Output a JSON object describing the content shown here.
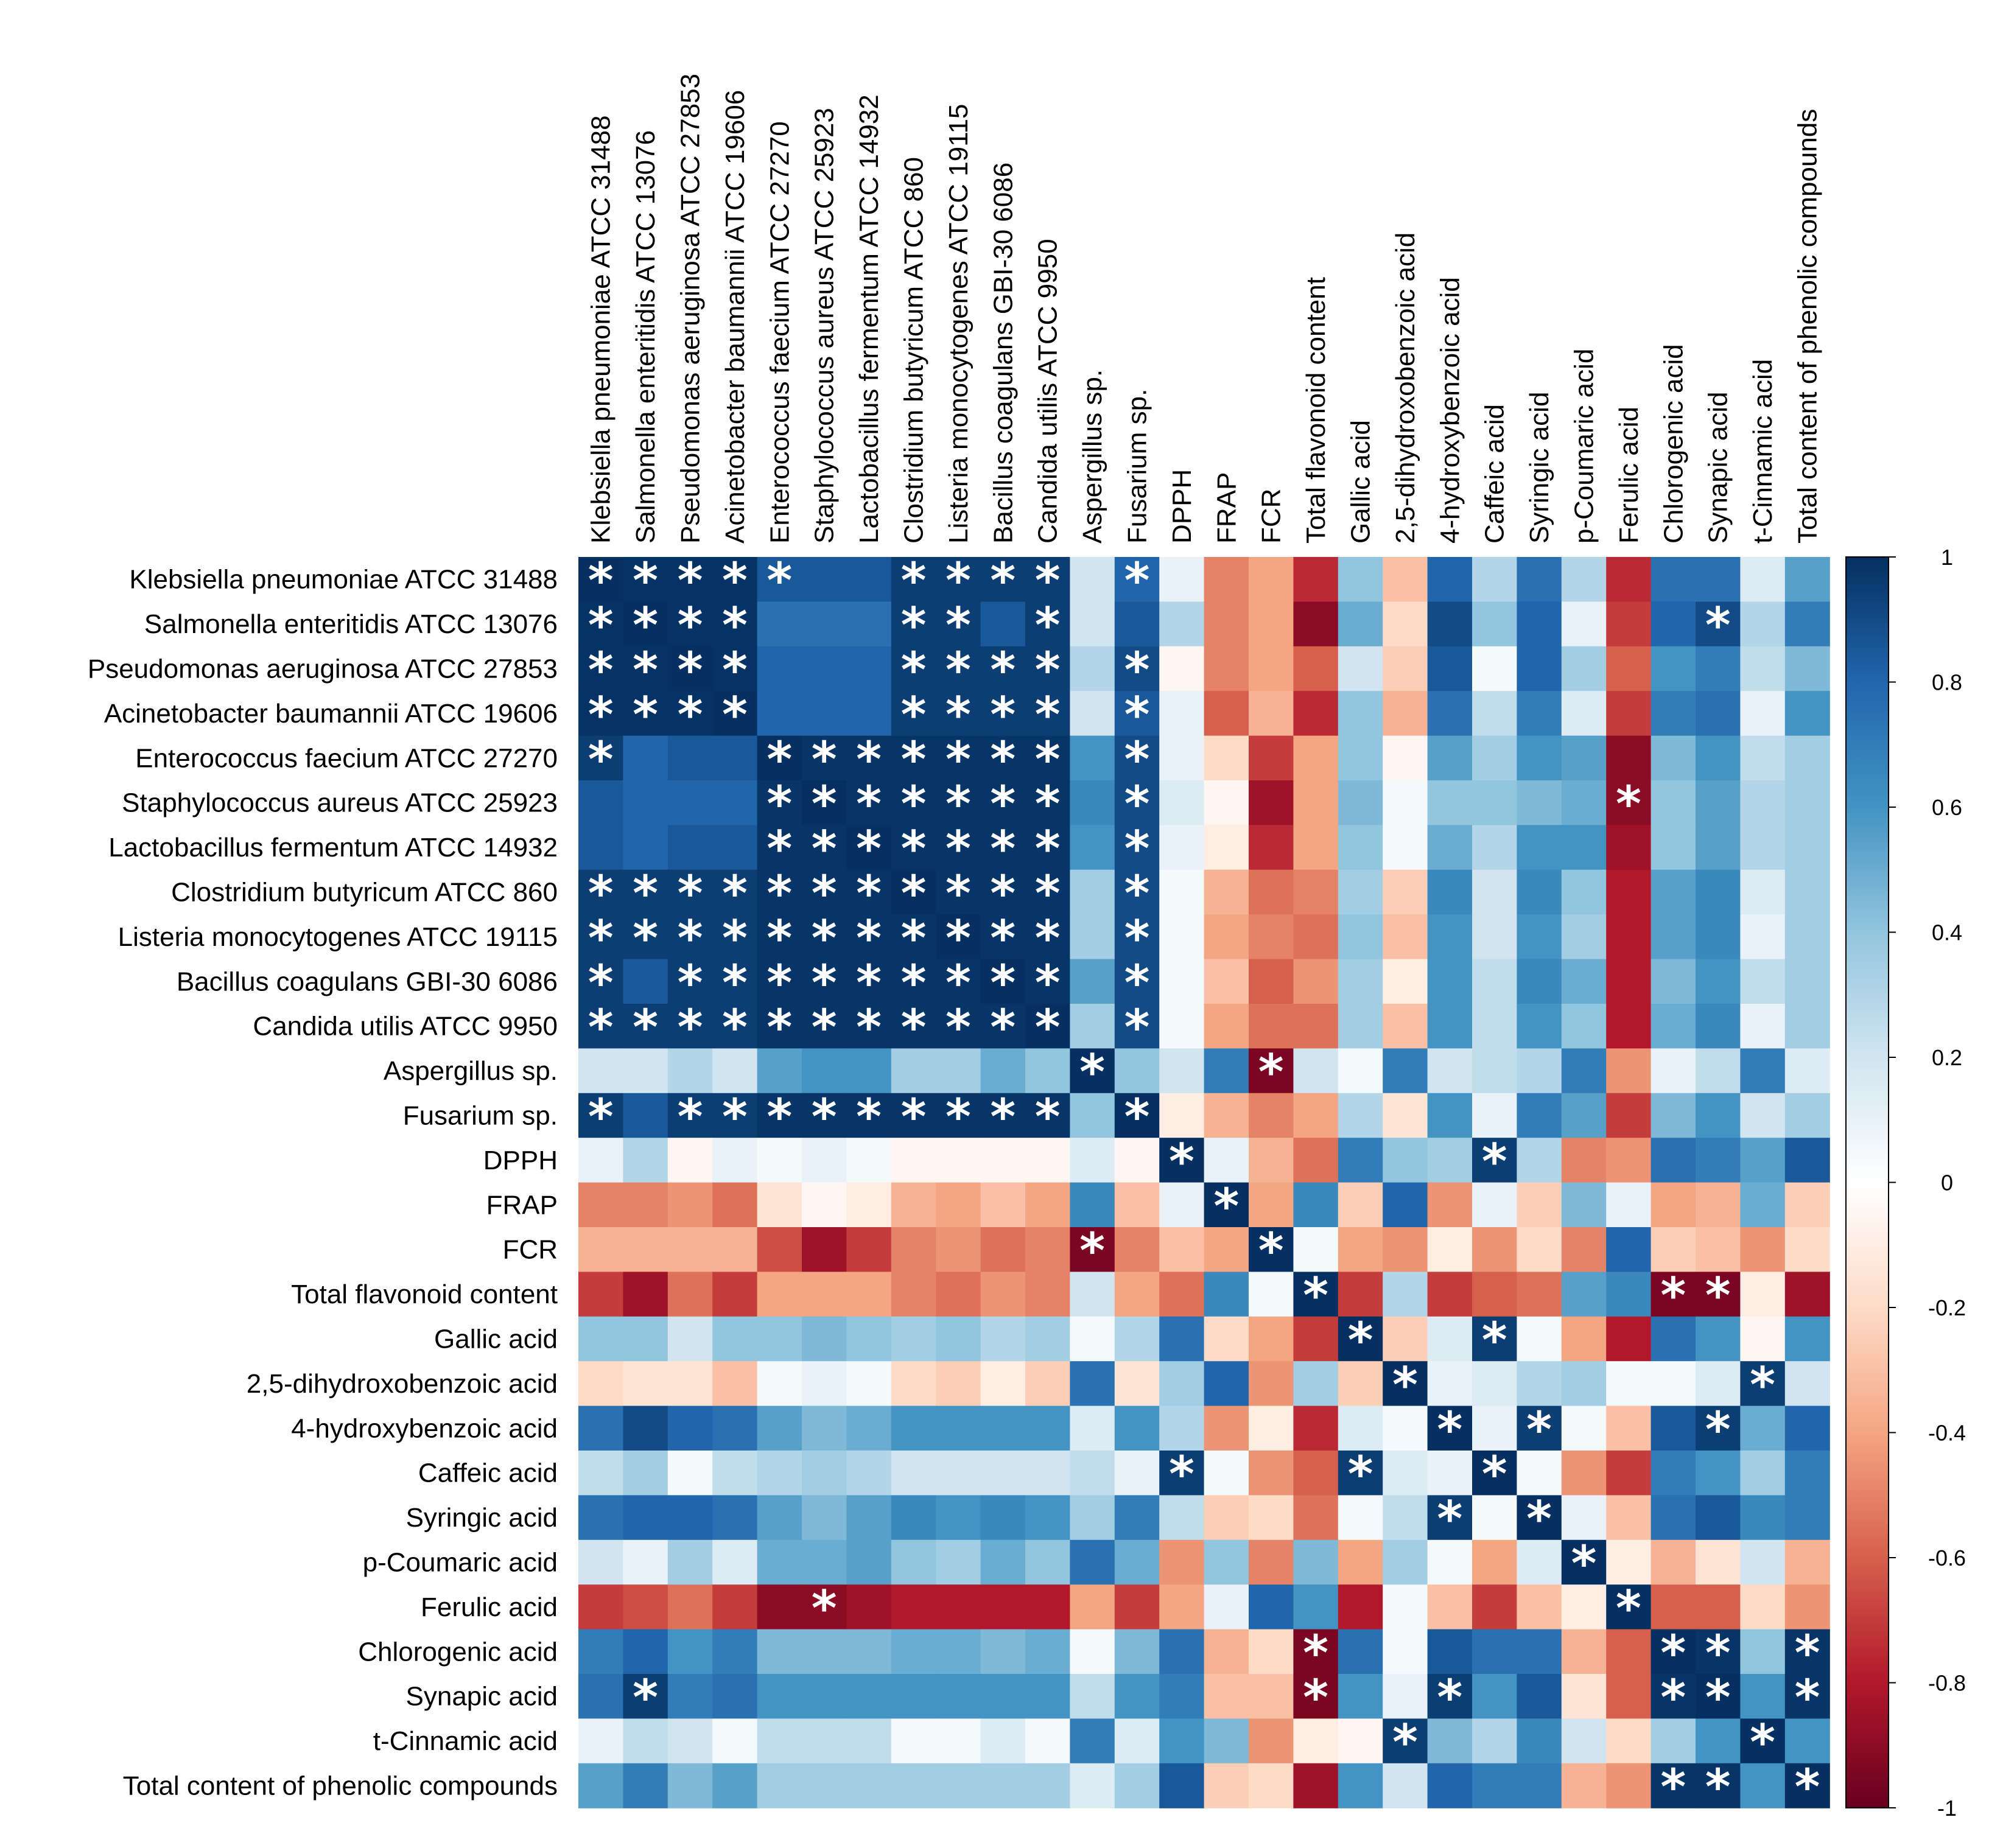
{
  "chart_data": {
    "type": "heatmap",
    "title": "",
    "labels": [
      "Klebsiella pneumoniae ATCC 31488",
      "Salmonella enteritidis ATCC 13076",
      "Pseudomonas aeruginosa ATCC 27853",
      "Acinetobacter baumannii ATCC 19606",
      "Enterococcus faecium ATCC 27270",
      "Staphylococcus aureus ATCC 25923",
      "Lactobacillus fermentum ATCC 14932",
      "Clostridium butyricum ATCC 860",
      "Listeria monocytogenes ATCC 19115",
      "Bacillus coagulans GBI-30 6086",
      "Candida utilis ATCC 9950",
      "Aspergillus sp.",
      "Fusarium sp.",
      "DPPH",
      "FRAP",
      "FCR",
      "Total flavonoid content",
      "Gallic acid",
      "2,5-dihydroxobenzoic acid",
      "4-hydroxybenzoic acid",
      "Caffeic acid",
      "Syringic acid",
      "p-Coumaric acid",
      "Ferulic acid",
      "Chlorogenic acid",
      "Synapic acid",
      "t-Cinnamic acid",
      "Total content of phenolic compounds"
    ],
    "matrix": [
      [
        1,
        0.99,
        0.99,
        0.99,
        0.85,
        0.85,
        0.85,
        0.95,
        0.95,
        0.95,
        0.95,
        0.2,
        0.8,
        0.1,
        -0.5,
        -0.4,
        -0.75,
        0.4,
        -0.3,
        0.8,
        0.3,
        0.75,
        0.3,
        -0.75,
        0.75,
        0.75,
        0.15,
        0.55
      ],
      [
        0.99,
        1,
        0.99,
        0.99,
        0.75,
        0.75,
        0.75,
        0.95,
        0.95,
        0.85,
        0.95,
        0.2,
        0.85,
        0.3,
        -0.5,
        -0.4,
        -0.9,
        0.5,
        -0.2,
        0.9,
        0.4,
        0.8,
        0.1,
        -0.7,
        0.8,
        0.9,
        0.3,
        0.7
      ],
      [
        0.99,
        0.99,
        1,
        0.99,
        0.8,
        0.8,
        0.8,
        0.95,
        0.95,
        0.95,
        0.95,
        0.3,
        0.9,
        -0.05,
        -0.5,
        -0.4,
        -0.6,
        0.2,
        -0.25,
        0.85,
        0.05,
        0.8,
        0.35,
        -0.6,
        0.6,
        0.7,
        0.25,
        0.45
      ],
      [
        0.99,
        0.99,
        0.99,
        1,
        0.8,
        0.8,
        0.8,
        0.95,
        0.95,
        0.95,
        0.95,
        0.2,
        0.85,
        0.1,
        -0.6,
        -0.35,
        -0.75,
        0.4,
        -0.35,
        0.75,
        0.25,
        0.7,
        0.15,
        -0.7,
        0.7,
        0.75,
        0.1,
        0.6
      ],
      [
        0.95,
        0.8,
        0.85,
        0.85,
        1,
        0.98,
        0.98,
        0.98,
        0.98,
        0.98,
        0.98,
        0.6,
        0.9,
        0.1,
        -0.2,
        -0.7,
        -0.4,
        0.4,
        -0.05,
        0.55,
        0.35,
        0.6,
        0.55,
        -0.9,
        0.45,
        0.6,
        0.25,
        0.35
      ],
      [
        0.85,
        0.8,
        0.8,
        0.8,
        0.98,
        1,
        0.98,
        0.98,
        0.98,
        0.98,
        0.98,
        0.65,
        0.9,
        0.15,
        -0.05,
        -0.85,
        -0.4,
        0.45,
        0.05,
        0.4,
        0.4,
        0.45,
        0.5,
        -0.9,
        0.4,
        0.55,
        0.3,
        0.35
      ],
      [
        0.85,
        0.8,
        0.85,
        0.85,
        0.98,
        0.98,
        1,
        0.98,
        0.98,
        0.98,
        0.98,
        0.6,
        0.9,
        0.1,
        -0.1,
        -0.75,
        -0.4,
        0.4,
        0.05,
        0.5,
        0.3,
        0.6,
        0.6,
        -0.85,
        0.4,
        0.55,
        0.3,
        0.35
      ],
      [
        0.95,
        0.95,
        0.95,
        0.95,
        0.98,
        0.98,
        0.98,
        1,
        0.98,
        0.98,
        0.98,
        0.35,
        0.9,
        0.05,
        -0.35,
        -0.55,
        -0.5,
        0.35,
        -0.25,
        0.65,
        0.2,
        0.65,
        0.4,
        -0.8,
        0.55,
        0.65,
        0.15,
        0.35
      ],
      [
        0.95,
        0.95,
        0.95,
        0.95,
        0.98,
        0.98,
        0.98,
        0.98,
        1,
        0.98,
        0.98,
        0.35,
        0.9,
        0.05,
        -0.4,
        -0.5,
        -0.55,
        0.4,
        -0.3,
        0.6,
        0.2,
        0.6,
        0.35,
        -0.8,
        0.55,
        0.65,
        0.1,
        0.35
      ],
      [
        0.95,
        0.85,
        0.95,
        0.95,
        0.98,
        0.98,
        0.98,
        0.98,
        0.98,
        1,
        0.98,
        0.55,
        0.9,
        0.05,
        -0.3,
        -0.6,
        -0.45,
        0.35,
        -0.1,
        0.6,
        0.25,
        0.65,
        0.5,
        -0.8,
        0.45,
        0.6,
        0.25,
        0.35
      ],
      [
        0.95,
        0.95,
        0.95,
        0.95,
        0.98,
        0.98,
        0.98,
        0.98,
        0.98,
        0.98,
        1,
        0.35,
        0.9,
        0.05,
        -0.4,
        -0.55,
        -0.55,
        0.35,
        -0.3,
        0.6,
        0.25,
        0.6,
        0.4,
        -0.8,
        0.5,
        0.65,
        0.1,
        0.35
      ],
      [
        0.2,
        0.2,
        0.3,
        0.2,
        0.55,
        0.6,
        0.6,
        0.35,
        0.35,
        0.5,
        0.4,
        1,
        0.4,
        0.2,
        0.7,
        -0.95,
        0.2,
        0.05,
        0.7,
        0.2,
        0.25,
        0.3,
        0.7,
        -0.45,
        0.1,
        0.25,
        0.7,
        0.15
      ],
      [
        0.95,
        0.85,
        0.95,
        0.95,
        0.98,
        0.98,
        0.98,
        0.98,
        0.98,
        0.98,
        0.98,
        0.4,
        1,
        -0.1,
        -0.35,
        -0.5,
        -0.4,
        0.3,
        -0.15,
        0.6,
        0.1,
        0.7,
        0.55,
        -0.7,
        0.45,
        0.6,
        0.2,
        0.35
      ],
      [
        0.1,
        0.3,
        -0.05,
        0.1,
        0.05,
        0.1,
        0.05,
        -0.05,
        -0.05,
        -0.05,
        -0.05,
        0.15,
        -0.05,
        1,
        0.1,
        -0.35,
        -0.55,
        0.7,
        0.4,
        0.35,
        0.95,
        0.3,
        -0.5,
        -0.45,
        0.75,
        0.7,
        0.55,
        0.85
      ],
      [
        -0.5,
        -0.5,
        -0.45,
        -0.55,
        -0.15,
        -0.05,
        -0.1,
        -0.35,
        -0.4,
        -0.3,
        -0.4,
        0.65,
        -0.3,
        0.1,
        1,
        -0.4,
        0.65,
        -0.25,
        0.8,
        -0.45,
        0.1,
        -0.25,
        0.45,
        0.1,
        -0.4,
        -0.35,
        0.5,
        -0.25
      ],
      [
        -0.35,
        -0.35,
        -0.35,
        -0.35,
        -0.65,
        -0.85,
        -0.7,
        -0.5,
        -0.45,
        -0.55,
        -0.5,
        -0.95,
        -0.5,
        -0.3,
        -0.4,
        1,
        0.05,
        -0.4,
        -0.45,
        -0.1,
        -0.45,
        -0.2,
        -0.5,
        0.8,
        -0.25,
        -0.3,
        -0.45,
        -0.2
      ],
      [
        -0.7,
        -0.85,
        -0.55,
        -0.7,
        -0.4,
        -0.4,
        -0.4,
        -0.5,
        -0.55,
        -0.45,
        -0.5,
        0.2,
        -0.4,
        -0.55,
        0.65,
        0.05,
        1,
        -0.7,
        0.3,
        -0.7,
        -0.6,
        -0.55,
        0.55,
        0.65,
        -0.95,
        -0.95,
        -0.1,
        -0.85
      ],
      [
        0.4,
        0.4,
        0.2,
        0.4,
        0.4,
        0.45,
        0.4,
        0.35,
        0.4,
        0.3,
        0.35,
        0.05,
        0.3,
        0.75,
        -0.2,
        -0.4,
        -0.7,
        1,
        -0.25,
        0.15,
        0.95,
        0.05,
        -0.4,
        -0.8,
        0.75,
        0.6,
        -0.05,
        0.6
      ],
      [
        -0.2,
        -0.15,
        -0.15,
        -0.3,
        0.05,
        0.1,
        0.05,
        -0.2,
        -0.25,
        -0.1,
        -0.25,
        0.75,
        -0.15,
        0.35,
        0.8,
        -0.45,
        0.35,
        -0.25,
        1,
        0.1,
        0.15,
        0.3,
        0.35,
        0.05,
        0.05,
        0.15,
        0.95,
        0.2
      ],
      [
        0.75,
        0.9,
        0.8,
        0.75,
        0.55,
        0.45,
        0.5,
        0.6,
        0.6,
        0.6,
        0.6,
        0.15,
        0.6,
        0.3,
        -0.45,
        -0.1,
        -0.75,
        0.15,
        0.05,
        1,
        0.1,
        0.95,
        0.05,
        -0.3,
        0.85,
        0.95,
        0.5,
        0.8
      ],
      [
        0.25,
        0.35,
        0.05,
        0.25,
        0.3,
        0.35,
        0.3,
        0.2,
        0.2,
        0.2,
        0.2,
        0.25,
        0.1,
        0.95,
        0.05,
        -0.45,
        -0.6,
        0.95,
        0.15,
        0.1,
        1,
        0.05,
        -0.45,
        -0.7,
        0.7,
        0.6,
        0.35,
        0.7
      ],
      [
        0.75,
        0.8,
        0.8,
        0.75,
        0.55,
        0.45,
        0.55,
        0.65,
        0.6,
        0.65,
        0.6,
        0.35,
        0.7,
        0.25,
        -0.25,
        -0.2,
        -0.55,
        0.05,
        0.25,
        0.95,
        0.05,
        1,
        0.1,
        -0.3,
        0.75,
        0.85,
        0.65,
        0.7
      ],
      [
        0.2,
        0.1,
        0.35,
        0.15,
        0.5,
        0.5,
        0.55,
        0.4,
        0.35,
        0.5,
        0.4,
        0.75,
        0.5,
        -0.45,
        0.4,
        -0.5,
        0.45,
        -0.4,
        0.35,
        0.05,
        -0.4,
        0.15,
        1,
        -0.1,
        -0.35,
        -0.15,
        0.2,
        -0.35
      ],
      [
        -0.7,
        -0.65,
        -0.55,
        -0.7,
        -0.9,
        -0.9,
        -0.85,
        -0.8,
        -0.8,
        -0.8,
        -0.8,
        -0.4,
        -0.7,
        -0.4,
        0.1,
        0.8,
        0.6,
        -0.8,
        0.05,
        -0.3,
        -0.7,
        -0.3,
        -0.1,
        1,
        -0.6,
        -0.6,
        -0.2,
        -0.45
      ],
      [
        0.7,
        0.8,
        0.6,
        0.7,
        0.45,
        0.45,
        0.45,
        0.5,
        0.5,
        0.45,
        0.5,
        0.05,
        0.45,
        0.75,
        -0.35,
        -0.2,
        -0.95,
        0.75,
        0.05,
        0.85,
        0.75,
        0.75,
        -0.35,
        -0.6,
        1,
        0.98,
        0.4,
        0.98
      ],
      [
        0.75,
        0.95,
        0.7,
        0.75,
        0.6,
        0.6,
        0.6,
        0.6,
        0.6,
        0.6,
        0.6,
        0.25,
        0.6,
        0.7,
        -0.3,
        -0.3,
        -0.95,
        0.6,
        0.1,
        0.95,
        0.6,
        0.85,
        -0.15,
        -0.6,
        0.98,
        1,
        0.6,
        0.98
      ],
      [
        0.1,
        0.25,
        0.2,
        0.05,
        0.25,
        0.25,
        0.25,
        0.05,
        0.05,
        0.15,
        0.05,
        0.7,
        0.15,
        0.6,
        0.45,
        -0.45,
        -0.1,
        -0.05,
        0.95,
        0.45,
        0.3,
        0.65,
        0.2,
        -0.2,
        0.35,
        0.6,
        1,
        0.6
      ],
      [
        0.55,
        0.7,
        0.45,
        0.55,
        0.35,
        0.35,
        0.35,
        0.35,
        0.35,
        0.35,
        0.35,
        0.15,
        0.35,
        0.85,
        -0.25,
        -0.2,
        -0.85,
        0.6,
        0.2,
        0.8,
        0.7,
        0.7,
        -0.35,
        -0.45,
        0.98,
        0.98,
        0.6,
        1
      ]
    ],
    "significant": [
      [
        0,
        0
      ],
      [
        0,
        1
      ],
      [
        0,
        2
      ],
      [
        0,
        3
      ],
      [
        0,
        4
      ],
      [
        0,
        7
      ],
      [
        0,
        8
      ],
      [
        0,
        9
      ],
      [
        0,
        10
      ],
      [
        0,
        12
      ],
      [
        1,
        0
      ],
      [
        1,
        1
      ],
      [
        1,
        2
      ],
      [
        1,
        3
      ],
      [
        1,
        7
      ],
      [
        1,
        8
      ],
      [
        1,
        10
      ],
      [
        1,
        25
      ],
      [
        2,
        0
      ],
      [
        2,
        1
      ],
      [
        2,
        2
      ],
      [
        2,
        3
      ],
      [
        2,
        7
      ],
      [
        2,
        8
      ],
      [
        2,
        9
      ],
      [
        2,
        10
      ],
      [
        2,
        12
      ],
      [
        3,
        0
      ],
      [
        3,
        1
      ],
      [
        3,
        2
      ],
      [
        3,
        3
      ],
      [
        3,
        7
      ],
      [
        3,
        8
      ],
      [
        3,
        9
      ],
      [
        3,
        10
      ],
      [
        3,
        12
      ],
      [
        4,
        0
      ],
      [
        4,
        4
      ],
      [
        4,
        5
      ],
      [
        4,
        6
      ],
      [
        4,
        7
      ],
      [
        4,
        8
      ],
      [
        4,
        9
      ],
      [
        4,
        10
      ],
      [
        4,
        12
      ],
      [
        5,
        4
      ],
      [
        5,
        5
      ],
      [
        5,
        6
      ],
      [
        5,
        7
      ],
      [
        5,
        8
      ],
      [
        5,
        9
      ],
      [
        5,
        10
      ],
      [
        5,
        12
      ],
      [
        5,
        23
      ],
      [
        6,
        4
      ],
      [
        6,
        5
      ],
      [
        6,
        6
      ],
      [
        6,
        7
      ],
      [
        6,
        8
      ],
      [
        6,
        9
      ],
      [
        6,
        10
      ],
      [
        6,
        12
      ],
      [
        7,
        0
      ],
      [
        7,
        1
      ],
      [
        7,
        2
      ],
      [
        7,
        3
      ],
      [
        7,
        4
      ],
      [
        7,
        5
      ],
      [
        7,
        6
      ],
      [
        7,
        7
      ],
      [
        7,
        8
      ],
      [
        7,
        9
      ],
      [
        7,
        10
      ],
      [
        7,
        12
      ],
      [
        8,
        0
      ],
      [
        8,
        1
      ],
      [
        8,
        2
      ],
      [
        8,
        3
      ],
      [
        8,
        4
      ],
      [
        8,
        5
      ],
      [
        8,
        6
      ],
      [
        8,
        7
      ],
      [
        8,
        8
      ],
      [
        8,
        9
      ],
      [
        8,
        10
      ],
      [
        8,
        12
      ],
      [
        9,
        0
      ],
      [
        9,
        2
      ],
      [
        9,
        3
      ],
      [
        9,
        4
      ],
      [
        9,
        5
      ],
      [
        9,
        6
      ],
      [
        9,
        7
      ],
      [
        9,
        8
      ],
      [
        9,
        9
      ],
      [
        9,
        10
      ],
      [
        9,
        12
      ],
      [
        10,
        0
      ],
      [
        10,
        1
      ],
      [
        10,
        2
      ],
      [
        10,
        3
      ],
      [
        10,
        4
      ],
      [
        10,
        5
      ],
      [
        10,
        6
      ],
      [
        10,
        7
      ],
      [
        10,
        8
      ],
      [
        10,
        9
      ],
      [
        10,
        10
      ],
      [
        10,
        12
      ],
      [
        11,
        11
      ],
      [
        11,
        15
      ],
      [
        12,
        0
      ],
      [
        12,
        2
      ],
      [
        12,
        3
      ],
      [
        12,
        4
      ],
      [
        12,
        5
      ],
      [
        12,
        6
      ],
      [
        12,
        7
      ],
      [
        12,
        8
      ],
      [
        12,
        9
      ],
      [
        12,
        10
      ],
      [
        12,
        12
      ],
      [
        13,
        13
      ],
      [
        13,
        20
      ],
      [
        14,
        14
      ],
      [
        15,
        11
      ],
      [
        15,
        15
      ],
      [
        16,
        16
      ],
      [
        16,
        24
      ],
      [
        16,
        25
      ],
      [
        17,
        17
      ],
      [
        17,
        20
      ],
      [
        18,
        18
      ],
      [
        18,
        26
      ],
      [
        19,
        19
      ],
      [
        19,
        21
      ],
      [
        19,
        25
      ],
      [
        20,
        13
      ],
      [
        20,
        17
      ],
      [
        20,
        20
      ],
      [
        21,
        19
      ],
      [
        21,
        21
      ],
      [
        22,
        22
      ],
      [
        23,
        5
      ],
      [
        23,
        23
      ],
      [
        24,
        16
      ],
      [
        24,
        24
      ],
      [
        24,
        25
      ],
      [
        24,
        27
      ],
      [
        25,
        1
      ],
      [
        25,
        16
      ],
      [
        25,
        19
      ],
      [
        25,
        24
      ],
      [
        25,
        25
      ],
      [
        25,
        27
      ],
      [
        26,
        18
      ],
      [
        26,
        26
      ],
      [
        27,
        24
      ],
      [
        27,
        25
      ],
      [
        27,
        27
      ]
    ],
    "significance_marker": "*",
    "colorbar": {
      "min": -1,
      "max": 1,
      "ticks": [
        1,
        0.8,
        0.6,
        0.4,
        0.2,
        0,
        -0.2,
        -0.4,
        -0.6,
        -0.8,
        -1
      ],
      "tick_labels": [
        "1",
        "0.8",
        "0.6",
        "0.4",
        "0.2",
        "0",
        "-0.2",
        "-0.4",
        "-0.6",
        "-0.8",
        "-1"
      ],
      "palette": [
        "#67001f",
        "#b2182b",
        "#d6604d",
        "#f4a582",
        "#fddbc7",
        "#ffffff",
        "#d1e5f0",
        "#92c5de",
        "#4393c3",
        "#2166ac",
        "#053061"
      ],
      "legend_position": "right"
    }
  }
}
